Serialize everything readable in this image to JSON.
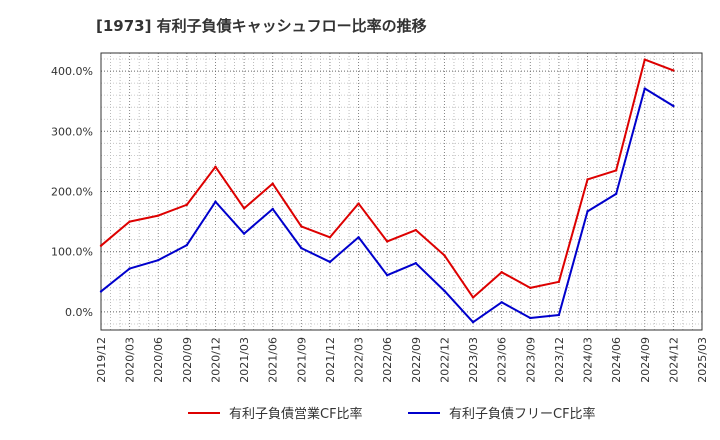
{
  "chart_data": {
    "type": "line",
    "title": "[1973]  有利子負債キャッシュフロー比率の推移",
    "x": [
      "2019/12",
      "2020/03",
      "2020/06",
      "2020/09",
      "2020/12",
      "2021/03",
      "2021/06",
      "2021/09",
      "2021/12",
      "2022/03",
      "2022/06",
      "2022/09",
      "2022/12",
      "2023/03",
      "2023/06",
      "2023/09",
      "2023/12",
      "2024/03",
      "2024/06",
      "2024/09",
      "2024/12",
      "2025/03"
    ],
    "ylim": [
      -30,
      430
    ],
    "yticks": [
      0,
      100,
      200,
      300,
      400
    ],
    "ytick_labels": [
      "0.0%",
      "100.0%",
      "200.0%",
      "300.0%",
      "400.0%"
    ],
    "grid": true,
    "legend_position": "bottom",
    "series": [
      {
        "name": "有利子負債営業CF比率",
        "color": "#dd0000",
        "values": [
          110,
          150,
          160,
          178,
          241,
          172,
          213,
          142,
          124,
          180,
          117,
          136,
          94,
          24,
          66,
          40,
          50,
          220,
          235,
          419,
          401,
          null
        ]
      },
      {
        "name": "有利子負債フリーCF比率",
        "color": "#0000cc",
        "values": [
          34,
          72,
          86,
          111,
          183,
          130,
          171,
          106,
          83,
          124,
          61,
          81,
          35,
          -17,
          16,
          -10,
          -5,
          167,
          196,
          371,
          342,
          null
        ]
      }
    ]
  }
}
